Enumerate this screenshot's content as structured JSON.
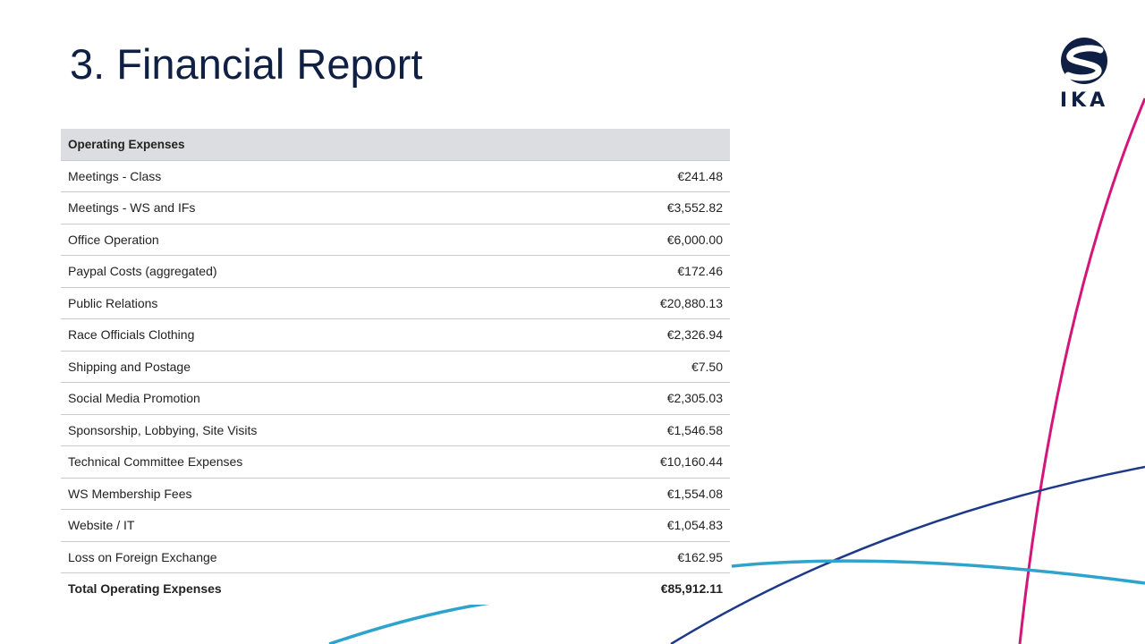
{
  "title": "3. Financial Report",
  "logo": {
    "icon": "ika-logo-icon",
    "text": "IKA",
    "color": "#0f2044"
  },
  "colors": {
    "title": "#0f2044",
    "header_bg": "#dcdde0",
    "magenta_curve": "#d4157a",
    "navy_curve": "#1d3a8a",
    "cyan_curve": "#2ea3cc"
  },
  "table": {
    "header": "Operating Expenses",
    "rows": [
      {
        "label": "Meetings - Class",
        "amount": "€241.48"
      },
      {
        "label": "Meetings - WS and IFs",
        "amount": "€3,552.82"
      },
      {
        "label": "Office Operation",
        "amount": "€6,000.00"
      },
      {
        "label": "Paypal Costs (aggregated)",
        "amount": "€172.46"
      },
      {
        "label": "Public Relations",
        "amount": "€20,880.13"
      },
      {
        "label": "Race Officials Clothing",
        "amount": "€2,326.94"
      },
      {
        "label": "Shipping and Postage",
        "amount": "€7.50"
      },
      {
        "label": "Social Media Promotion",
        "amount": "€2,305.03"
      },
      {
        "label": "Sponsorship, Lobbying, Site Visits",
        "amount": "€1,546.58"
      },
      {
        "label": "Technical Committee Expenses",
        "amount": "€10,160.44"
      },
      {
        "label": "WS Membership Fees",
        "amount": "€1,554.08"
      },
      {
        "label": "Website / IT",
        "amount": "€1,054.83"
      },
      {
        "label": "Loss on Foreign Exchange",
        "amount": "€162.95"
      }
    ],
    "total": {
      "label": "Total Operating Expenses",
      "amount": "€85,912.11"
    }
  }
}
